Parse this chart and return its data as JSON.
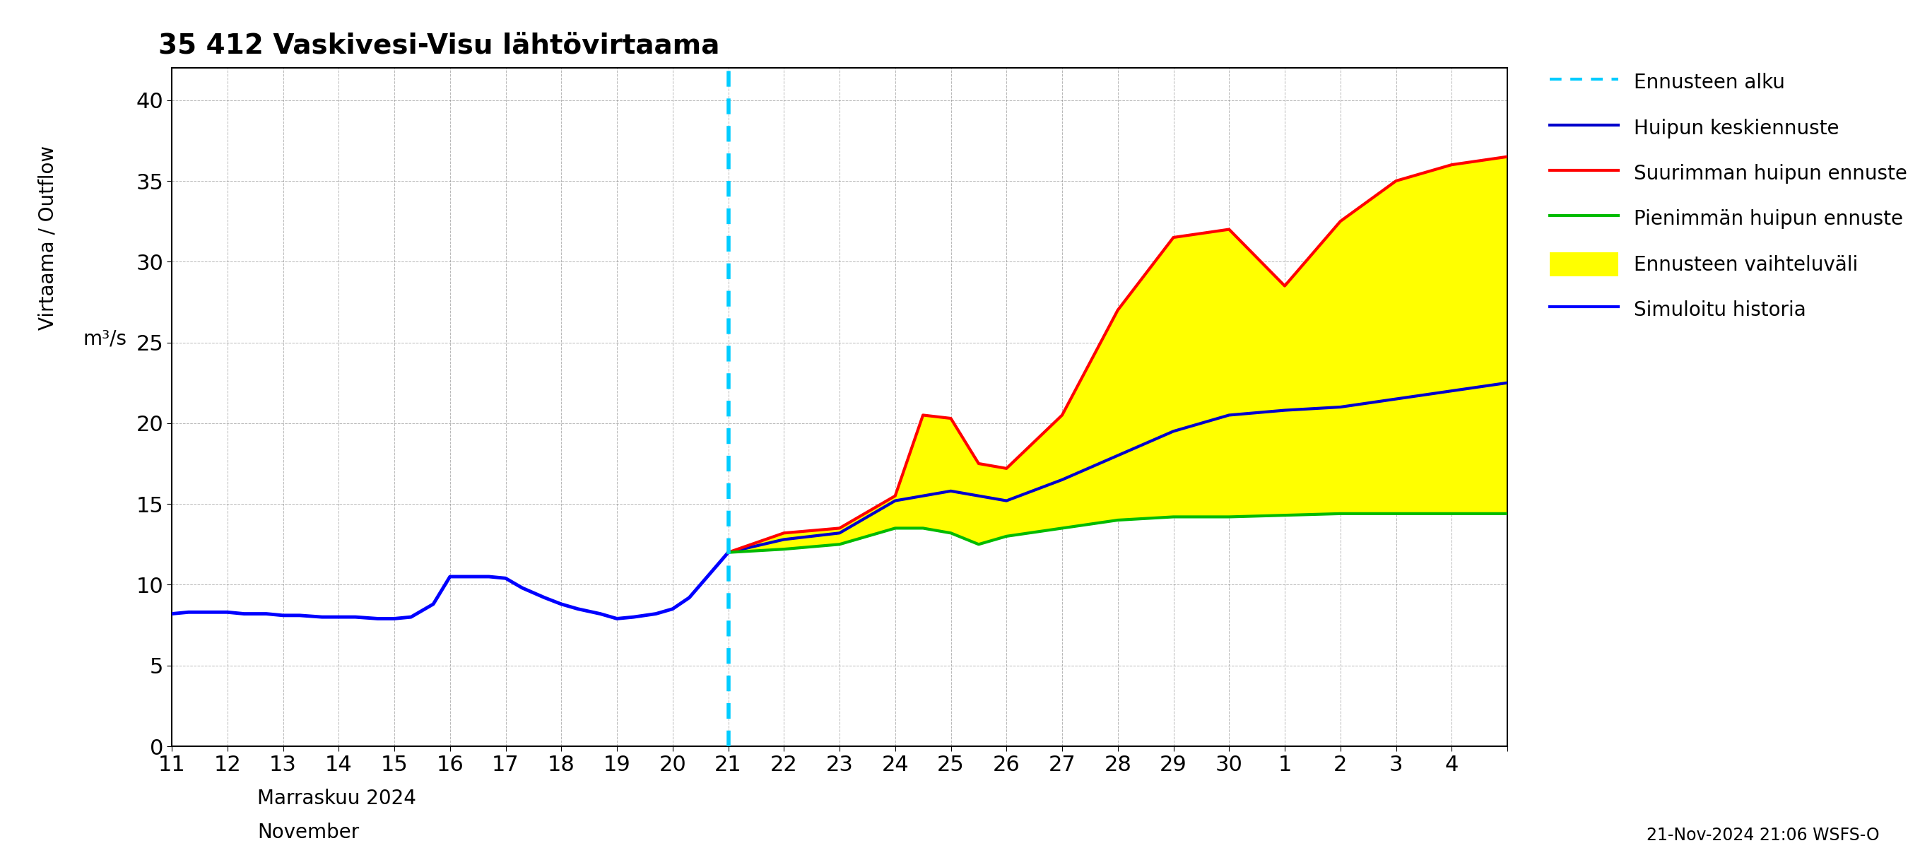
{
  "title": "35 412 Vaskivesi-Visu lähtövirtaama",
  "ylabel_top": "Virtaama / Outflow",
  "ylabel_bottom": "m³/s",
  "xlabel_line1": "Marraskuu 2024",
  "xlabel_line2": "November",
  "footnote": "21-Nov-2024 21:06 WSFS-O",
  "ylim": [
    0,
    42
  ],
  "yticks": [
    0,
    5,
    10,
    15,
    20,
    25,
    30,
    35,
    40
  ],
  "forecast_start_x": 21,
  "legend_labels": [
    "Ennusteen alku",
    "Huipun keskiennuste",
    "Suurimman huipun ennuste",
    "Pienimmän huipun ennuste",
    "Ennusteen vaihteluväli",
    "Simuloitu historia"
  ],
  "history_x": [
    11,
    11.3,
    11.7,
    12,
    12.3,
    12.7,
    13,
    13.3,
    13.7,
    14,
    14.3,
    14.7,
    15,
    15.3,
    15.7,
    16,
    16.3,
    16.7,
    17,
    17.3,
    17.7,
    18,
    18.3,
    18.7,
    19,
    19.3,
    19.7,
    20,
    20.3,
    20.7,
    21
  ],
  "history_y": [
    8.2,
    8.3,
    8.3,
    8.3,
    8.2,
    8.2,
    8.1,
    8.1,
    8.0,
    8.0,
    8.0,
    7.9,
    7.9,
    8.0,
    8.8,
    10.5,
    10.5,
    10.5,
    10.4,
    9.8,
    9.2,
    8.8,
    8.5,
    8.2,
    7.9,
    8.0,
    8.2,
    8.5,
    9.2,
    10.8,
    12.0
  ],
  "mean_x": [
    21,
    22,
    23,
    24,
    25,
    26,
    27,
    28,
    29,
    30,
    31,
    32,
    33,
    34,
    35
  ],
  "mean_y": [
    12.0,
    12.8,
    13.2,
    15.2,
    15.8,
    15.2,
    16.5,
    18.0,
    19.5,
    20.5,
    20.8,
    21.0,
    21.5,
    22.0,
    22.5
  ],
  "max_x": [
    21,
    22,
    23,
    24,
    24.5,
    25,
    25.5,
    26,
    27,
    28,
    29,
    30,
    31,
    32,
    33,
    34,
    35
  ],
  "max_y": [
    12.0,
    13.2,
    13.5,
    15.5,
    20.5,
    20.3,
    17.5,
    17.2,
    20.5,
    27.0,
    31.5,
    32.0,
    28.5,
    32.5,
    35.0,
    36.0,
    36.5
  ],
  "min_x": [
    21,
    22,
    23,
    24,
    24.5,
    25,
    25.5,
    26,
    27,
    28,
    29,
    30,
    31,
    32,
    33,
    34,
    35
  ],
  "min_y": [
    12.0,
    12.2,
    12.5,
    13.5,
    13.5,
    13.2,
    12.5,
    13.0,
    13.5,
    14.0,
    14.2,
    14.2,
    14.3,
    14.4,
    14.4,
    14.4,
    14.4
  ],
  "xticks": [
    11,
    12,
    13,
    14,
    15,
    16,
    17,
    18,
    19,
    20,
    21,
    22,
    23,
    24,
    25,
    26,
    27,
    28,
    29,
    30,
    31,
    32,
    33,
    34,
    35
  ],
  "xtick_labels": [
    "11",
    "12",
    "13",
    "14",
    "15",
    "16",
    "17",
    "18",
    "19",
    "20",
    "21",
    "22",
    "23",
    "24",
    "25",
    "26",
    "27",
    "28",
    "29",
    "30",
    "1",
    "2",
    "3",
    "4",
    ""
  ],
  "color_history": "#0000FF",
  "color_mean": "#0000CC",
  "color_max": "#FF0000",
  "color_min": "#00BB00",
  "color_fill": "#FFFF00",
  "color_forecast_line": "#00CCFF",
  "color_grid": "#888888",
  "background": "#FFFFFF"
}
